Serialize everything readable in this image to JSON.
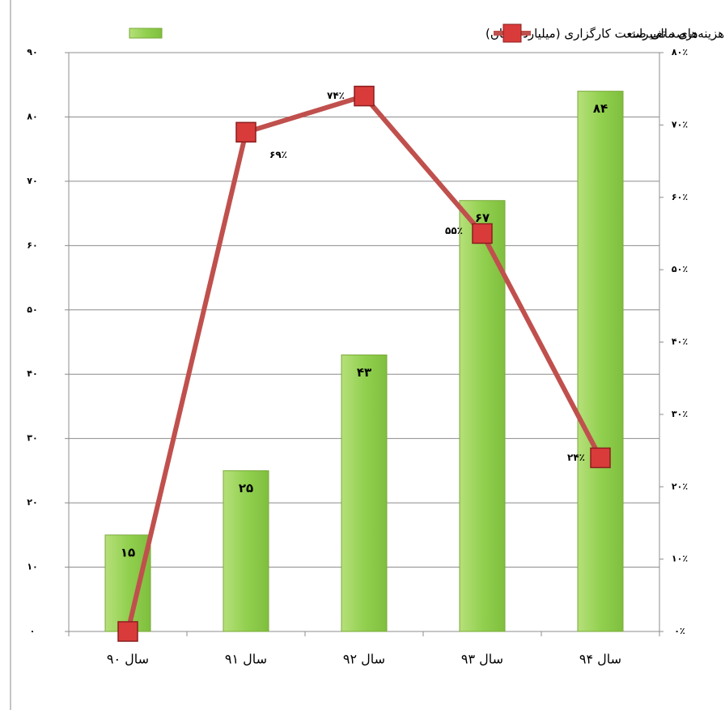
{
  "chart_data": {
    "type": "bar-line",
    "categories": [
      "سال ۹۰",
      "سال ۹۱",
      "سال ۹۲",
      "سال ۹۳",
      "سال ۹۴"
    ],
    "series": [
      {
        "name": "هزینه‌های مالی صنعت کارگزاری (میلیارد تومان)",
        "type": "bar",
        "color": "#92d050",
        "values": [
          15,
          25,
          43,
          67,
          84
        ],
        "value_labels": [
          "۱۵",
          "۲۵",
          "۴۳",
          "۶۷",
          "۸۴"
        ]
      },
      {
        "name": "درصد تغییرات",
        "type": "line",
        "axis": "y2",
        "color": "#c0504d",
        "values": [
          0,
          69,
          74,
          55,
          24
        ],
        "value_labels": [
          null,
          "۶۹٪",
          "۷۴٪",
          "۵۵٪",
          "۲۴٪"
        ]
      }
    ],
    "ylim": [
      0,
      90
    ],
    "yticks": [
      {
        "value": 0,
        "label": "۰"
      },
      {
        "value": 10,
        "label": "۱۰"
      },
      {
        "value": 20,
        "label": "۲۰"
      },
      {
        "value": 30,
        "label": "۳۰"
      },
      {
        "value": 40,
        "label": "۴۰"
      },
      {
        "value": 50,
        "label": "۵۰"
      },
      {
        "value": 60,
        "label": "۶۰"
      },
      {
        "value": 70,
        "label": "۷۰"
      },
      {
        "value": 80,
        "label": "۸۰"
      },
      {
        "value": 90,
        "label": "۹۰"
      }
    ],
    "y2lim": [
      0,
      80
    ],
    "y2ticks": [
      {
        "value": 0,
        "label": "۰٪"
      },
      {
        "value": 10,
        "label": "۱۰٪"
      },
      {
        "value": 20,
        "label": "۲۰٪"
      },
      {
        "value": 30,
        "label": "۳۰٪"
      },
      {
        "value": 40,
        "label": "۴۰٪"
      },
      {
        "value": 50,
        "label": "۵۰٪"
      },
      {
        "value": 60,
        "label": "۶۰٪"
      },
      {
        "value": 70,
        "label": "۷۰٪"
      },
      {
        "value": 80,
        "label": "۸۰٪"
      }
    ],
    "grid": true,
    "legend": "top"
  }
}
